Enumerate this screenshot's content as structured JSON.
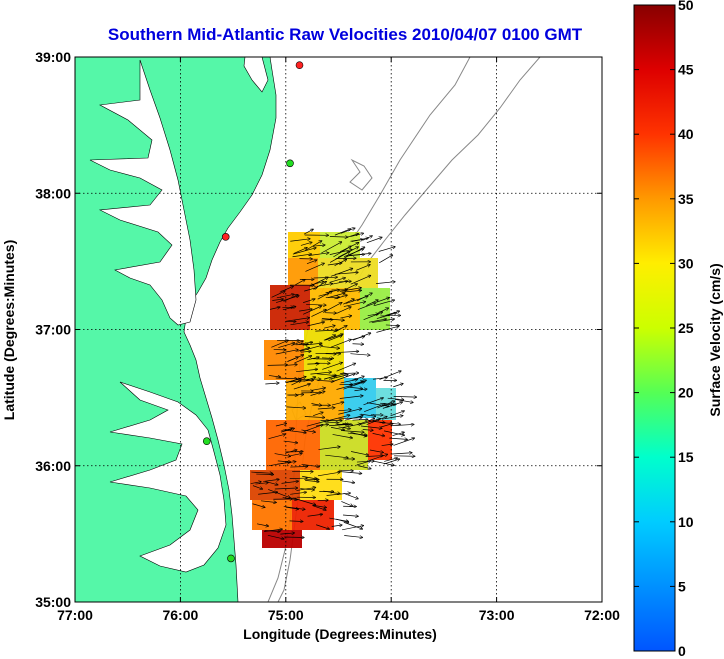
{
  "title": "Southern Mid-Atlantic Raw Velocities 2010/04/07 0100 GMT",
  "xlabel": "Longitude (Degrees:Minutes)",
  "ylabel": "Latitude (Degrees:Minutes)",
  "colorbar": {
    "label": "Surface Velocity (cm/s)",
    "min": 0,
    "max": 50,
    "ticks": [
      "0",
      "5",
      "10",
      "15",
      "20",
      "25",
      "30",
      "35",
      "40",
      "45",
      "50"
    ]
  },
  "colors": {
    "title": "#0000dd",
    "land": "#55f7a8",
    "water": "#ffffff",
    "bathymetry": "#888888",
    "grid": "#000000"
  },
  "map_data": {
    "lon_range": [
      -77,
      -72
    ],
    "lat_range": [
      35,
      39
    ],
    "x_ticks": [
      "77:00",
      "76:00",
      "75:00",
      "74:00",
      "73:00",
      "72:00"
    ],
    "y_ticks": [
      "35:00",
      "36:00",
      "37:00",
      "38:00",
      "39:00"
    ],
    "grid": true,
    "stations": [
      {
        "lon": -74.87,
        "lat": 38.94,
        "color": "#ff2222"
      },
      {
        "lon": -74.96,
        "lat": 38.22,
        "color": "#22dd22"
      },
      {
        "lon": -75.57,
        "lat": 37.68,
        "color": "#ff2222"
      },
      {
        "lon": -75.75,
        "lat": 36.18,
        "color": "#22dd22"
      },
      {
        "lon": -75.52,
        "lat": 35.32,
        "color": "#22dd22"
      }
    ]
  }
}
